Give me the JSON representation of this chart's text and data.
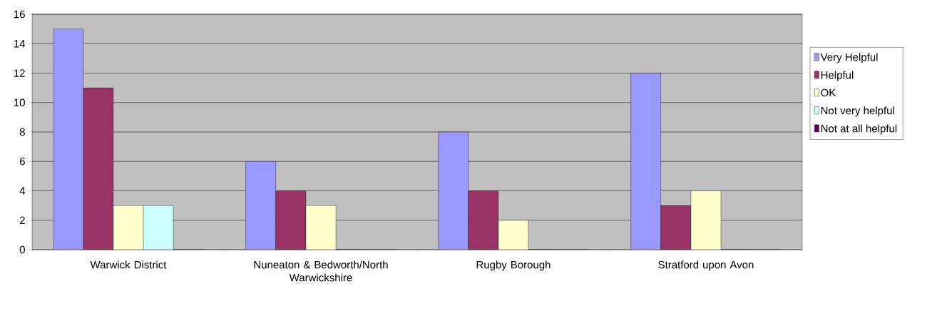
{
  "chart_data": {
    "type": "bar",
    "categories": [
      "Warwick District",
      "Nuneaton & Bedworth/North Warwickshire",
      "Rugby Borough",
      "Stratford upon Avon"
    ],
    "series": [
      {
        "name": "Very Helpful",
        "color": "#9999ff",
        "values": [
          15,
          6,
          8,
          12
        ]
      },
      {
        "name": "Helpful",
        "color": "#993366",
        "values": [
          11,
          4,
          4,
          3
        ]
      },
      {
        "name": "OK",
        "color": "#ffffcc",
        "values": [
          3,
          3,
          2,
          4
        ]
      },
      {
        "name": "Not very helpful",
        "color": "#ccffff",
        "values": [
          3,
          0,
          0,
          0
        ]
      },
      {
        "name": "Not at all helpful",
        "color": "#660066",
        "values": [
          0,
          0,
          0,
          0
        ]
      }
    ],
    "ylim": [
      0,
      16
    ],
    "yticks": [
      0,
      2,
      4,
      6,
      8,
      10,
      12,
      14,
      16
    ],
    "grid": "y",
    "legend": "right"
  }
}
